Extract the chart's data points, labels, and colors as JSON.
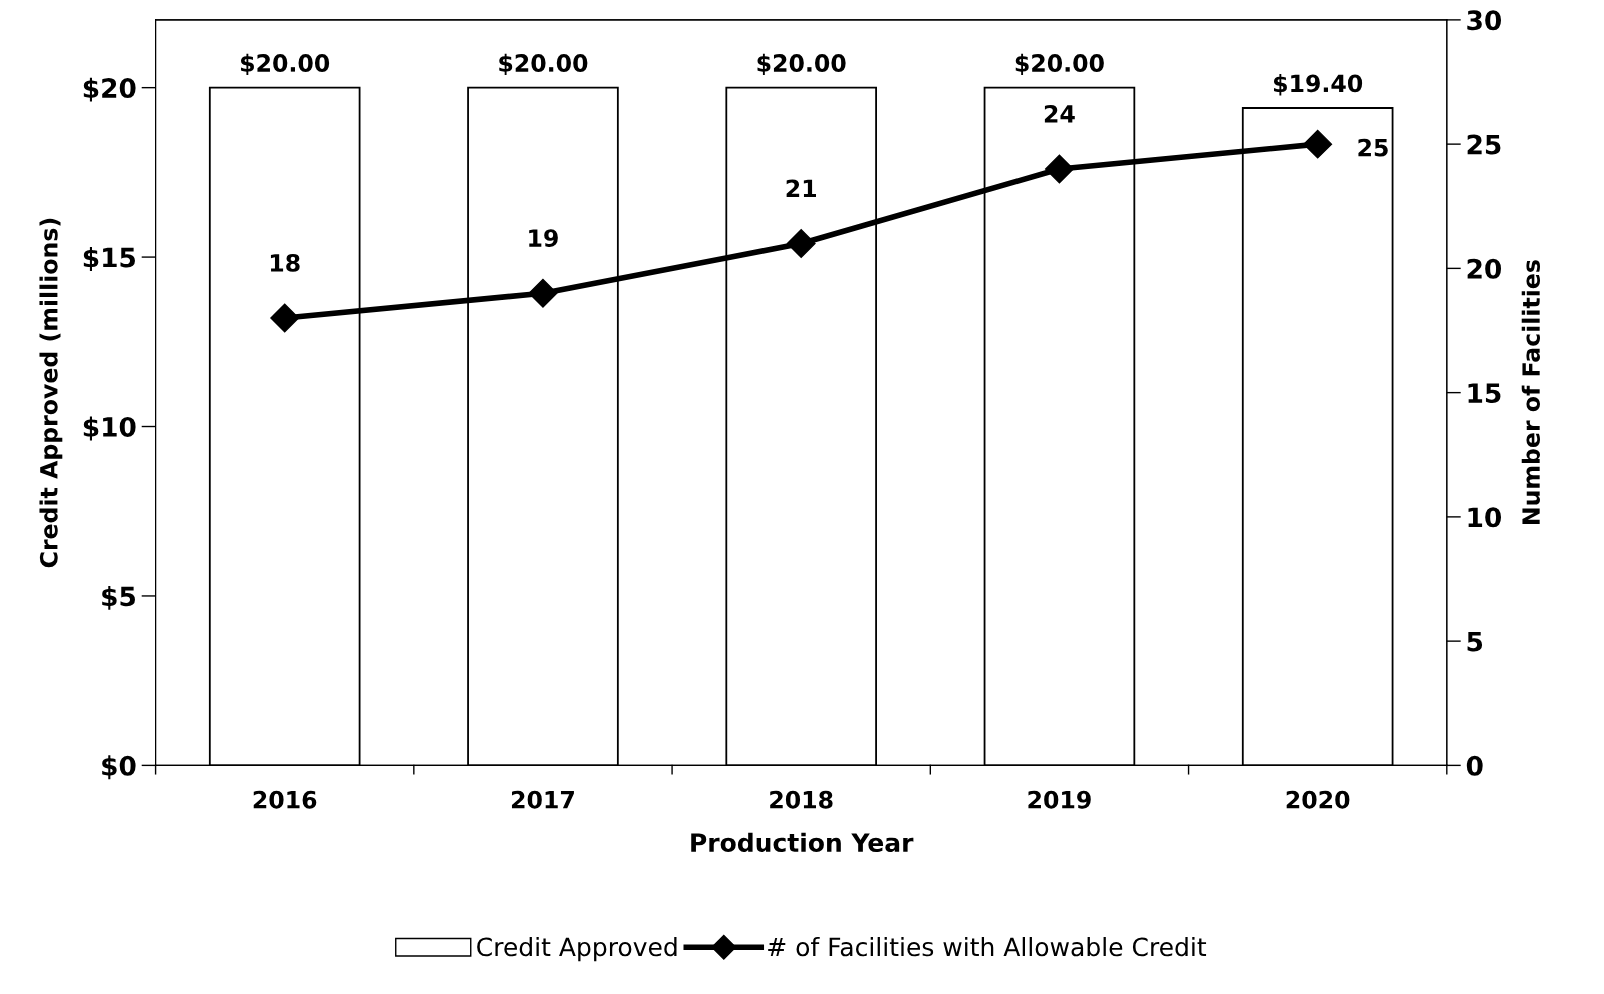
{
  "chart_data": {
    "type": "bar",
    "xlabel": "Production Year",
    "ylabel": "Credit Approved (millions)",
    "y2label": "Number of Facilities",
    "categories": [
      "2016",
      "2017",
      "2018",
      "2019",
      "2020"
    ],
    "series": [
      {
        "name": "Credit Approved",
        "color": "#ffffff",
        "values": [
          20,
          20,
          20,
          20,
          19.4
        ],
        "value_labels": [
          "$20.00",
          "$20.00",
          "$20.00",
          "$20.00",
          "$19.40"
        ]
      },
      {
        "name": "# of Facilities with Allowable Credit",
        "type": "line",
        "axis": "y2",
        "color": "#000000",
        "values": [
          18,
          19,
          21,
          24,
          25
        ],
        "value_labels": [
          "18",
          "19",
          "21",
          "24",
          "25"
        ]
      }
    ],
    "ylim": [
      0,
      22
    ],
    "yticks": [
      {
        "value": 0,
        "label": "$0"
      },
      {
        "value": 5,
        "label": "$5"
      },
      {
        "value": 10,
        "label": "$10"
      },
      {
        "value": 15,
        "label": "$15"
      },
      {
        "value": 20,
        "label": "$20"
      }
    ],
    "y2lim": [
      0,
      30
    ],
    "y2ticks": [
      0,
      5,
      10,
      15,
      20,
      25,
      30
    ],
    "grid": false,
    "legend": "bottom",
    "marker": "diamond",
    "line_style": "solid"
  }
}
